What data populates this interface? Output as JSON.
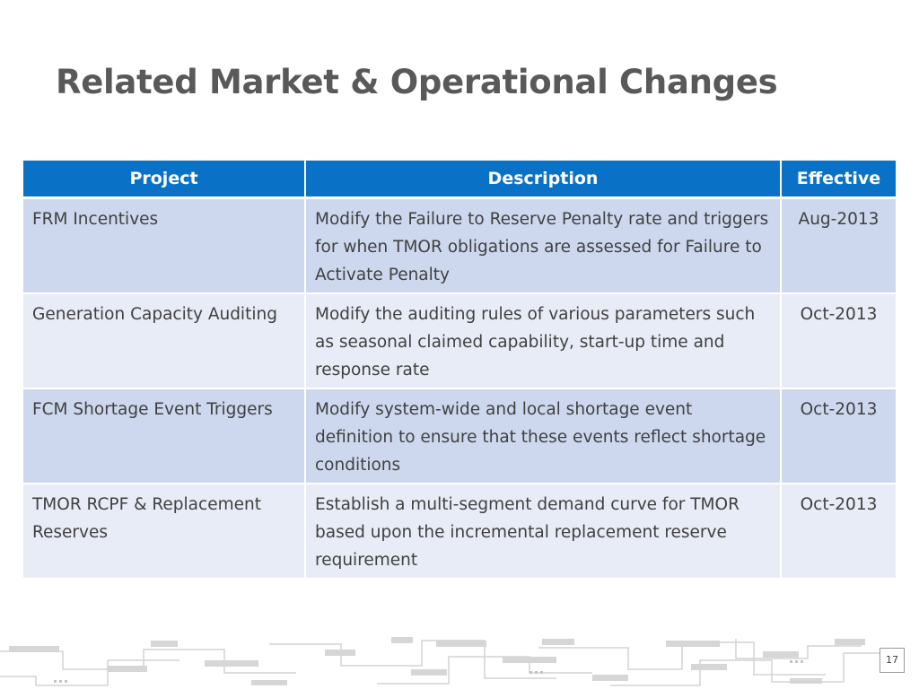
{
  "slide": {
    "title": "Related Market & Operational Changes",
    "page_number": "17"
  },
  "table": {
    "headers": [
      "Project",
      "Description",
      "Effective"
    ],
    "rows": [
      {
        "project": "FRM Incentives",
        "description": "Modify the Failure to Reserve Penalty rate and triggers for when TMOR obligations are assessed for Failure to Activate Penalty",
        "effective": "Aug-2013"
      },
      {
        "project": "Generation Capacity Auditing",
        "description": "Modify the auditing rules of various parameters such as seasonal claimed capability, start-up time and response rate",
        "effective": "Oct-2013"
      },
      {
        "project": "FCM Shortage Event Triggers",
        "description": "Modify system-wide and local shortage event definition to ensure that these events reflect shortage conditions",
        "effective": "Oct-2013"
      },
      {
        "project": "TMOR RCPF & Replacement Reserves",
        "description": "Establish a multi-segment demand curve for TMOR based upon the incremental replacement reserve requirement",
        "effective": "Oct-2013"
      }
    ]
  },
  "colors": {
    "header_blue": "#0a72c6",
    "row_band_dark": "#cdd8ee",
    "row_band_light": "#e8ecf6",
    "title_gray": "#595959"
  }
}
